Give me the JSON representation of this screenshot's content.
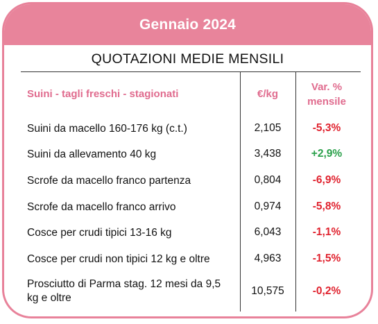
{
  "header": {
    "title": "Gennaio 2024",
    "subtitle": "QUOTAZIONI MEDIE MENSILI"
  },
  "columns": {
    "name": "Suini - tagli freschi - stagionati",
    "unit": "€/kg",
    "variation_line1": "Var. %",
    "variation_line2": "mensile"
  },
  "rows": [
    {
      "name": "Suini da macello 160-176 kg (c.t.)",
      "value": "2,105",
      "variation": "-5,3%"
    },
    {
      "name": "Suini da allevamento 40 kg",
      "value": "3,438",
      "variation": "+2,9%"
    },
    {
      "name": "Scrofe da macello franco partenza",
      "value": "0,804",
      "variation": "-6,9%"
    },
    {
      "name": "Scrofe da macello franco arrivo",
      "value": "0,974",
      "variation": "-5,8%"
    },
    {
      "name": "Cosce per crudi tipici 13-16 kg",
      "value": "6,043",
      "variation": "-1,1%"
    },
    {
      "name": "Cosce per crudi non tipici 12 kg e oltre",
      "value": "4,963",
      "variation": "-1,5%"
    },
    {
      "name": "Prosciutto di Parma stag. 12 mesi da 9,5 kg e oltre",
      "value": "10,575",
      "variation": "-0,2%"
    }
  ],
  "colors": {
    "accent": "#e8849b",
    "header_text": "#e06b8e",
    "negative": "#e0222e",
    "positive": "#2aa04a"
  }
}
